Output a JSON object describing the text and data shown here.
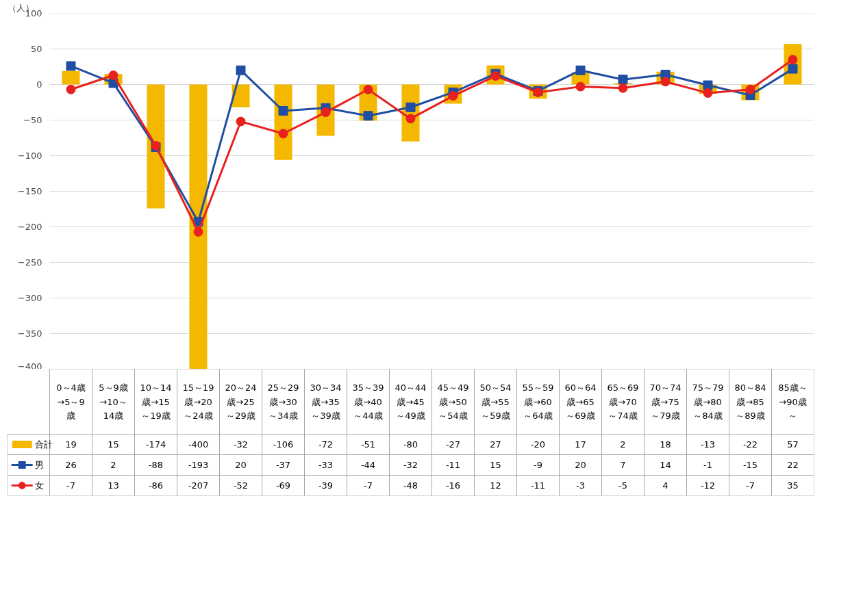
{
  "chart_data": {
    "type": "bar",
    "ylabel": "（人）",
    "categories": [
      "0～4歳→5～9歳",
      "5～9歳→10～14歳",
      "10～14歳→15～19歳",
      "15～19歳→20～24歳",
      "20～24歳→25～29歳",
      "25～29歳→30～34歳",
      "30～34歳→35～39歳",
      "35～39歳→40～44歳",
      "40～44歳→45～49歳",
      "45～49歳→50～54歳",
      "50～54歳→55～59歳",
      "55～59歳→60～64歳",
      "60～64歳→65～69歳",
      "65～69歳→70～74歳",
      "70～74歳→75～79歳",
      "75～79歳→80～84歳",
      "80～84歳→85～89歳",
      "85歳～→90歳～"
    ],
    "series": [
      {
        "name": "合計",
        "color": "#f5b800",
        "values": [
          19,
          15,
          -174,
          -400,
          -32,
          -106,
          -72,
          -51,
          -80,
          -27,
          27,
          -20,
          17,
          2,
          18,
          -13,
          -22,
          57
        ]
      },
      {
        "name": "男",
        "type": "line",
        "marker": "square",
        "color": "#1f4ea3",
        "values": [
          26,
          2,
          -88,
          -193,
          20,
          -37,
          -33,
          -44,
          -32,
          -11,
          15,
          -9,
          20,
          7,
          14,
          -1,
          -15,
          22
        ]
      },
      {
        "name": "女",
        "type": "line",
        "marker": "circle",
        "color": "#e8211f",
        "values": [
          -7,
          13,
          -86,
          -207,
          -52,
          -69,
          -39,
          -7,
          -48,
          -16,
          12,
          -11,
          -3,
          -5,
          4,
          -12,
          -7,
          35
        ]
      }
    ],
    "ylim": [
      -400,
      100
    ],
    "yticks": [
      -400,
      -350,
      -300,
      -250,
      -200,
      -150,
      -100,
      -50,
      0,
      50,
      100
    ],
    "grid": "y",
    "legend": "bottom left",
    "data_labels": true,
    "line_style": "solid"
  }
}
